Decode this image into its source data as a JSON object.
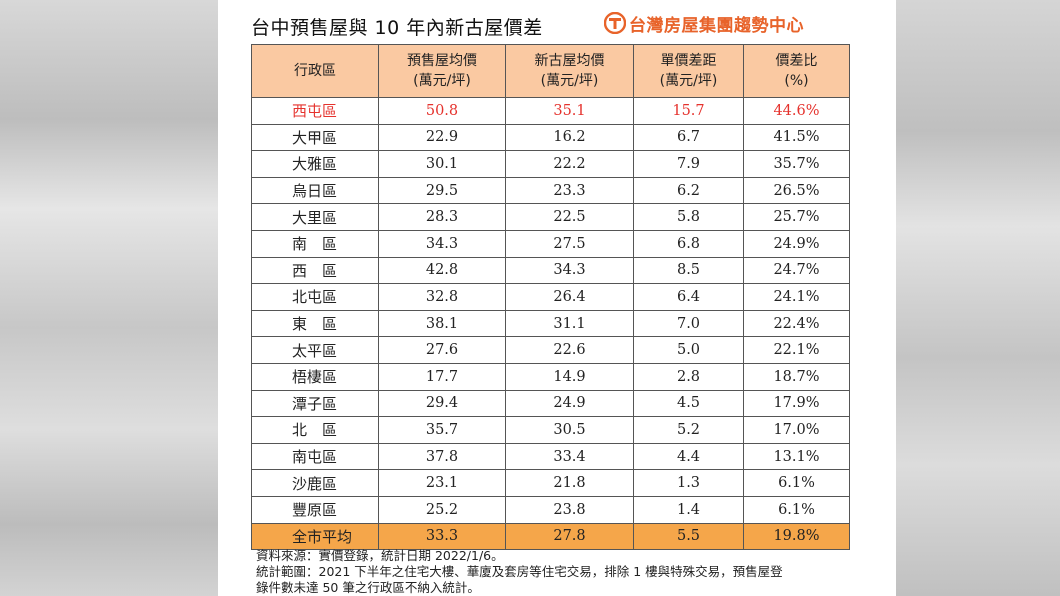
{
  "title": "台中預售屋與 10 年內新古屋價差",
  "brand": {
    "name": "台灣房屋集團趨勢中心",
    "color": "#e8632a"
  },
  "colors": {
    "header_bg": "#fac9a2",
    "total_bg": "#f5a64a",
    "highlight_text": "#e5322d"
  },
  "table": {
    "headers": [
      {
        "line1": "行政區",
        "line2": ""
      },
      {
        "line1": "預售屋均價",
        "line2": "(萬元/坪)"
      },
      {
        "line1": "新古屋均價",
        "line2": "(萬元/坪)"
      },
      {
        "line1": "單價差距",
        "line2": "(萬元/坪)"
      },
      {
        "line1": "價差比",
        "line2": "(%)"
      }
    ],
    "rows": [
      [
        "西屯區",
        "50.8",
        "35.1",
        "15.7",
        "44.6%"
      ],
      [
        "大甲區",
        "22.9",
        "16.2",
        "6.7",
        "41.5%"
      ],
      [
        "大雅區",
        "30.1",
        "22.2",
        "7.9",
        "35.7%"
      ],
      [
        "烏日區",
        "29.5",
        "23.3",
        "6.2",
        "26.5%"
      ],
      [
        "大里區",
        "28.3",
        "22.5",
        "5.8",
        "25.7%"
      ],
      [
        "南　區",
        "34.3",
        "27.5",
        "6.8",
        "24.9%"
      ],
      [
        "西　區",
        "42.8",
        "34.3",
        "8.5",
        "24.7%"
      ],
      [
        "北屯區",
        "32.8",
        "26.4",
        "6.4",
        "24.1%"
      ],
      [
        "東　區",
        "38.1",
        "31.1",
        "7.0",
        "22.4%"
      ],
      [
        "太平區",
        "27.6",
        "22.6",
        "5.0",
        "22.1%"
      ],
      [
        "梧棲區",
        "17.7",
        "14.9",
        "2.8",
        "18.7%"
      ],
      [
        "潭子區",
        "29.4",
        "24.9",
        "4.5",
        "17.9%"
      ],
      [
        "北　區",
        "35.7",
        "30.5",
        "5.2",
        "17.0%"
      ],
      [
        "南屯區",
        "37.8",
        "33.4",
        "4.4",
        "13.1%"
      ],
      [
        "沙鹿區",
        "23.1",
        "21.8",
        "1.3",
        "6.1%"
      ],
      [
        "豐原區",
        "25.2",
        "23.8",
        "1.4",
        "6.1%"
      ]
    ],
    "total": [
      "全市平均",
      "33.3",
      "27.8",
      "5.5",
      "19.8%"
    ]
  },
  "notes": {
    "line1": "資料來源：實價登錄，統計日期 2022/1/6。",
    "line2": "統計範圍：2021 下半年之住宅大樓、華廈及套房等住宅交易，排除 1 樓與特殊交易，預售屋登",
    "line3": "錄件數未達 50 筆之行政區不納入統計。"
  }
}
